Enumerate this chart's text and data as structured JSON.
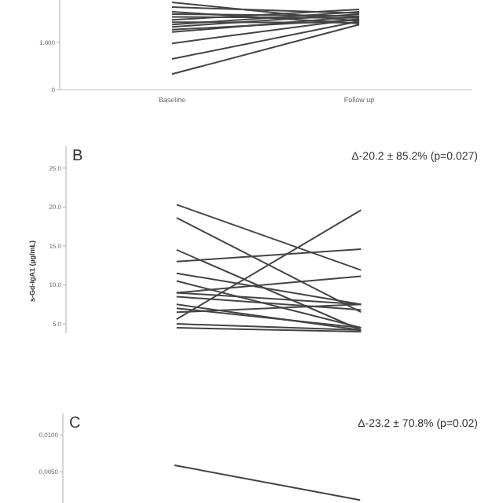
{
  "chart_data": [
    {
      "type": "line",
      "categories": [
        "Baseline",
        "Follow up"
      ],
      "ylim": [
        0,
        1.9
      ],
      "yticks": [
        0,
        {
          "value": 1,
          "label": "1.000"
        }
      ],
      "marker": "none",
      "series": [
        {
          "color": "#444444",
          "values": [
            0.33,
            1.38
          ]
        },
        {
          "color": "#444444",
          "values": [
            0.65,
            1.45
          ]
        },
        {
          "color": "#444444",
          "values": [
            0.98,
            1.5
          ]
        },
        {
          "color": "#444444",
          "values": [
            1.22,
            1.55
          ]
        },
        {
          "color": "#444444",
          "values": [
            1.27,
            1.48
          ]
        },
        {
          "color": "#444444",
          "values": [
            1.33,
            1.6
          ]
        },
        {
          "color": "#444444",
          "values": [
            1.38,
            1.65
          ]
        },
        {
          "color": "#444444",
          "values": [
            1.43,
            1.42
          ]
        },
        {
          "color": "#444444",
          "values": [
            1.48,
            1.7
          ]
        },
        {
          "color": "#444444",
          "values": [
            1.54,
            1.52
          ]
        },
        {
          "color": "#444444",
          "values": [
            1.6,
            1.56
          ]
        },
        {
          "color": "#444444",
          "values": [
            1.65,
            1.4
          ]
        },
        {
          "color": "#444444",
          "values": [
            1.75,
            1.62
          ]
        },
        {
          "color": "#444444",
          "values": [
            1.85,
            1.45
          ]
        }
      ]
    },
    {
      "type": "line",
      "title": "B",
      "ylabel": "s-Gd-IgA1 (µg/mL)",
      "annotations": [
        "Δ-20.2 ± 85.2% (p=0.027)"
      ],
      "categories": [
        null,
        null
      ],
      "tick_labels": "y",
      "ylim": [
        3.8,
        27.8
      ],
      "yticks": [
        {
          "value": 5,
          "label": "5.0"
        },
        {
          "value": 10,
          "label": "10.0"
        },
        {
          "value": 15,
          "label": "15.0"
        },
        {
          "value": 20,
          "label": "20.0"
        },
        {
          "value": 25,
          "label": "25.0"
        }
      ],
      "marker": "none",
      "series": [
        {
          "color": "#444444",
          "values": [
            20.3,
            11.9
          ]
        },
        {
          "color": "#444444",
          "values": [
            18.6,
            6.5
          ]
        },
        {
          "color": "#444444",
          "values": [
            5.6,
            19.6
          ]
        },
        {
          "color": "#444444",
          "values": [
            13.0,
            14.6
          ]
        },
        {
          "color": "#444444",
          "values": [
            14.5,
            4.2
          ]
        },
        {
          "color": "#444444",
          "values": [
            11.5,
            7.5
          ]
        },
        {
          "color": "#444444",
          "values": [
            9.0,
            11.1
          ]
        },
        {
          "color": "#444444",
          "values": [
            10.5,
            4.5
          ]
        },
        {
          "color": "#444444",
          "values": [
            9.0,
            7.5
          ]
        },
        {
          "color": "#444444",
          "values": [
            8.5,
            6.8
          ]
        },
        {
          "color": "#444444",
          "values": [
            7.5,
            4.2
          ]
        },
        {
          "color": "#444444",
          "values": [
            7.0,
            4.5
          ]
        },
        {
          "color": "#444444",
          "values": [
            6.5,
            7.5
          ]
        },
        {
          "color": "#444444",
          "values": [
            5.0,
            4.2
          ]
        },
        {
          "color": "#444444",
          "values": [
            4.5,
            4.0
          ]
        }
      ]
    },
    {
      "type": "line",
      "title": "C",
      "annotations": [
        "Δ-23.2 ± 70.8% (p=0.02)"
      ],
      "categories": [
        null,
        null
      ],
      "tick_labels": "y",
      "ylim": [
        0.0008,
        0.0129
      ],
      "yticks": [
        {
          "value": 0.005,
          "label": "0,0050"
        },
        {
          "value": 0.01,
          "label": "0,0100"
        }
      ],
      "marker": "none",
      "series": [
        {
          "color": "#444444",
          "values": [
            0.0059,
            0.0012
          ]
        }
      ]
    }
  ]
}
